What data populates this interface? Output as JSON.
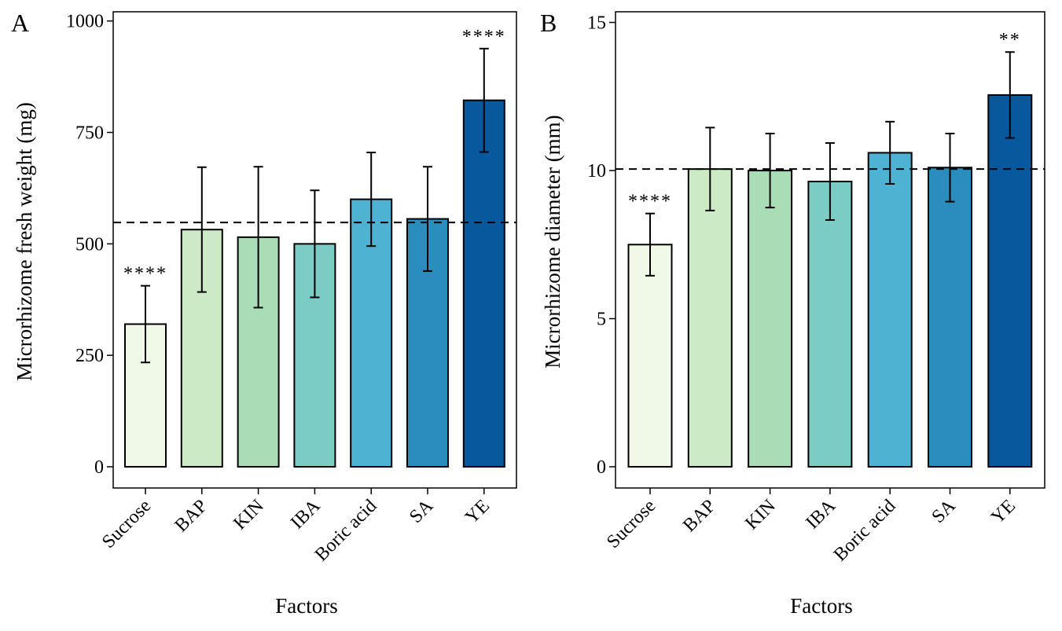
{
  "chart_data": [
    {
      "type": "bar",
      "panel_label": "A",
      "xlabel": "Factors",
      "ylabel": "Microrhizome fresh weight (mg)",
      "categories": [
        "Sucrose",
        "BAP",
        "KIN",
        "IBA",
        "Boric acid",
        "SA",
        "YE"
      ],
      "values": [
        320,
        532,
        515,
        500,
        600,
        556,
        822
      ],
      "errors": [
        86,
        140,
        158,
        120,
        105,
        117,
        116
      ],
      "colors": [
        "#f0f9e8",
        "#ccebc5",
        "#a8ddb5",
        "#7bccc4",
        "#4eb3d3",
        "#2b8cbe",
        "#08589e"
      ],
      "significance": [
        "****",
        "",
        "",
        "",
        "",
        "",
        "****"
      ],
      "reference_line": 548,
      "ylim": [
        0,
        1010
      ],
      "yticks": [
        0,
        250,
        500,
        750,
        1000
      ],
      "grid": false
    },
    {
      "type": "bar",
      "panel_label": "B",
      "xlabel": "Factors",
      "ylabel": "Microrhizome diameter (mm)",
      "categories": [
        "Sucrose",
        "BAP",
        "KIN",
        "IBA",
        "Boric acid",
        "SA",
        "YE"
      ],
      "values": [
        7.5,
        10.05,
        10.0,
        9.63,
        10.6,
        10.1,
        12.55
      ],
      "errors": [
        1.05,
        1.4,
        1.25,
        1.3,
        1.05,
        1.15,
        1.45
      ],
      "colors": [
        "#f0f9e8",
        "#ccebc5",
        "#a8ddb5",
        "#7bccc4",
        "#4eb3d3",
        "#2b8cbe",
        "#08589e"
      ],
      "significance": [
        "****",
        "",
        "",
        "",
        "",
        "",
        "**"
      ],
      "reference_line": 10.05,
      "ylim": [
        0,
        15.2
      ],
      "yticks": [
        0,
        5,
        10,
        15
      ],
      "grid": false
    }
  ]
}
